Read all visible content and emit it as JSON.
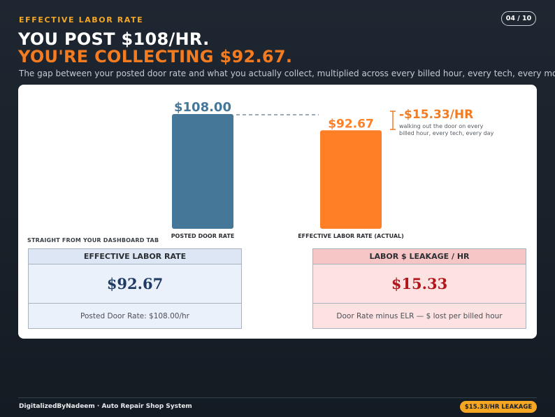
{
  "header": {
    "eyebrow": "EFFECTIVE LABOR RATE",
    "page_counter": "04 / 10",
    "headline_line1": "YOU POST $108/HR.",
    "headline_line2": "YOU'RE COLLECTING $92.67.",
    "subtitle": "The gap between your posted door rate and what you actually collect, multiplied across every billed hour, every tech, every month."
  },
  "chart_data": {
    "type": "bar",
    "categories": [
      "POSTED DOOR RATE",
      "EFFECTIVE LABOR RATE (ACTUAL)"
    ],
    "values": [
      108.0,
      92.67
    ],
    "value_labels": [
      "$108.00",
      "$92.67"
    ],
    "colors": [
      "#457799",
      "#ff7f27"
    ],
    "ylim": [
      0,
      108
    ],
    "grid": false,
    "annotation": {
      "label": "-$15.33/HR",
      "note_line1": "walking out the door on every",
      "note_line2": "billed hour, every tech, every day",
      "color": "#f47b20"
    }
  },
  "dashboard": {
    "label": "STRAIGHT FROM YOUR DASHBOARD TAB",
    "elr": {
      "title": "EFFECTIVE LABOR RATE",
      "value": "$92.67",
      "note": "Posted Door Rate: $108.00/hr"
    },
    "leakage": {
      "title": "LABOR $ LEAKAGE / HR",
      "value": "$15.33",
      "note": "Door Rate minus ELR — $ lost per billed hour"
    }
  },
  "footer": {
    "text": "DigitalizedByNadeem  ·  Auto Repair Shop System",
    "badge": "$15.33/HR LEAKAGE"
  }
}
